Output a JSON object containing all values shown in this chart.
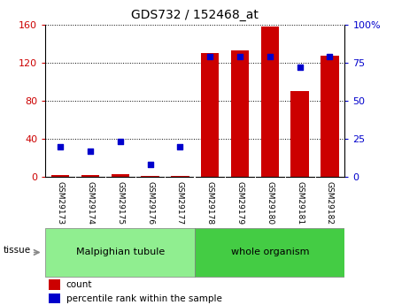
{
  "title": "GDS732 / 152468_at",
  "samples": [
    "GSM29173",
    "GSM29174",
    "GSM29175",
    "GSM29176",
    "GSM29177",
    "GSM29178",
    "GSM29179",
    "GSM29180",
    "GSM29181",
    "GSM29182"
  ],
  "counts": [
    2,
    2,
    3,
    1,
    1,
    130,
    133,
    158,
    90,
    127
  ],
  "percentile_ranks": [
    20,
    17,
    23,
    8,
    20,
    79,
    79,
    79,
    72,
    79
  ],
  "left_ylim": [
    0,
    160
  ],
  "right_ylim": [
    0,
    100
  ],
  "left_yticks": [
    0,
    40,
    80,
    120,
    160
  ],
  "right_yticks": [
    0,
    25,
    50,
    75,
    100
  ],
  "right_yticklabels": [
    "0",
    "25",
    "50",
    "75",
    "100%"
  ],
  "bar_color": "#cc0000",
  "dot_color": "#0000cc",
  "background_color": "#ffffff",
  "tick_label_area_color": "#c8c8c8",
  "malpighian_color": "#90ee90",
  "whole_organism_color": "#44cc44",
  "bar_width": 0.6,
  "n_samples": 10,
  "malpighian_label": "Malpighian tubule",
  "whole_organism_label": "whole organism",
  "tissue_text": "tissue",
  "legend_count_label": "count",
  "legend_pct_label": "percentile rank within the sample"
}
